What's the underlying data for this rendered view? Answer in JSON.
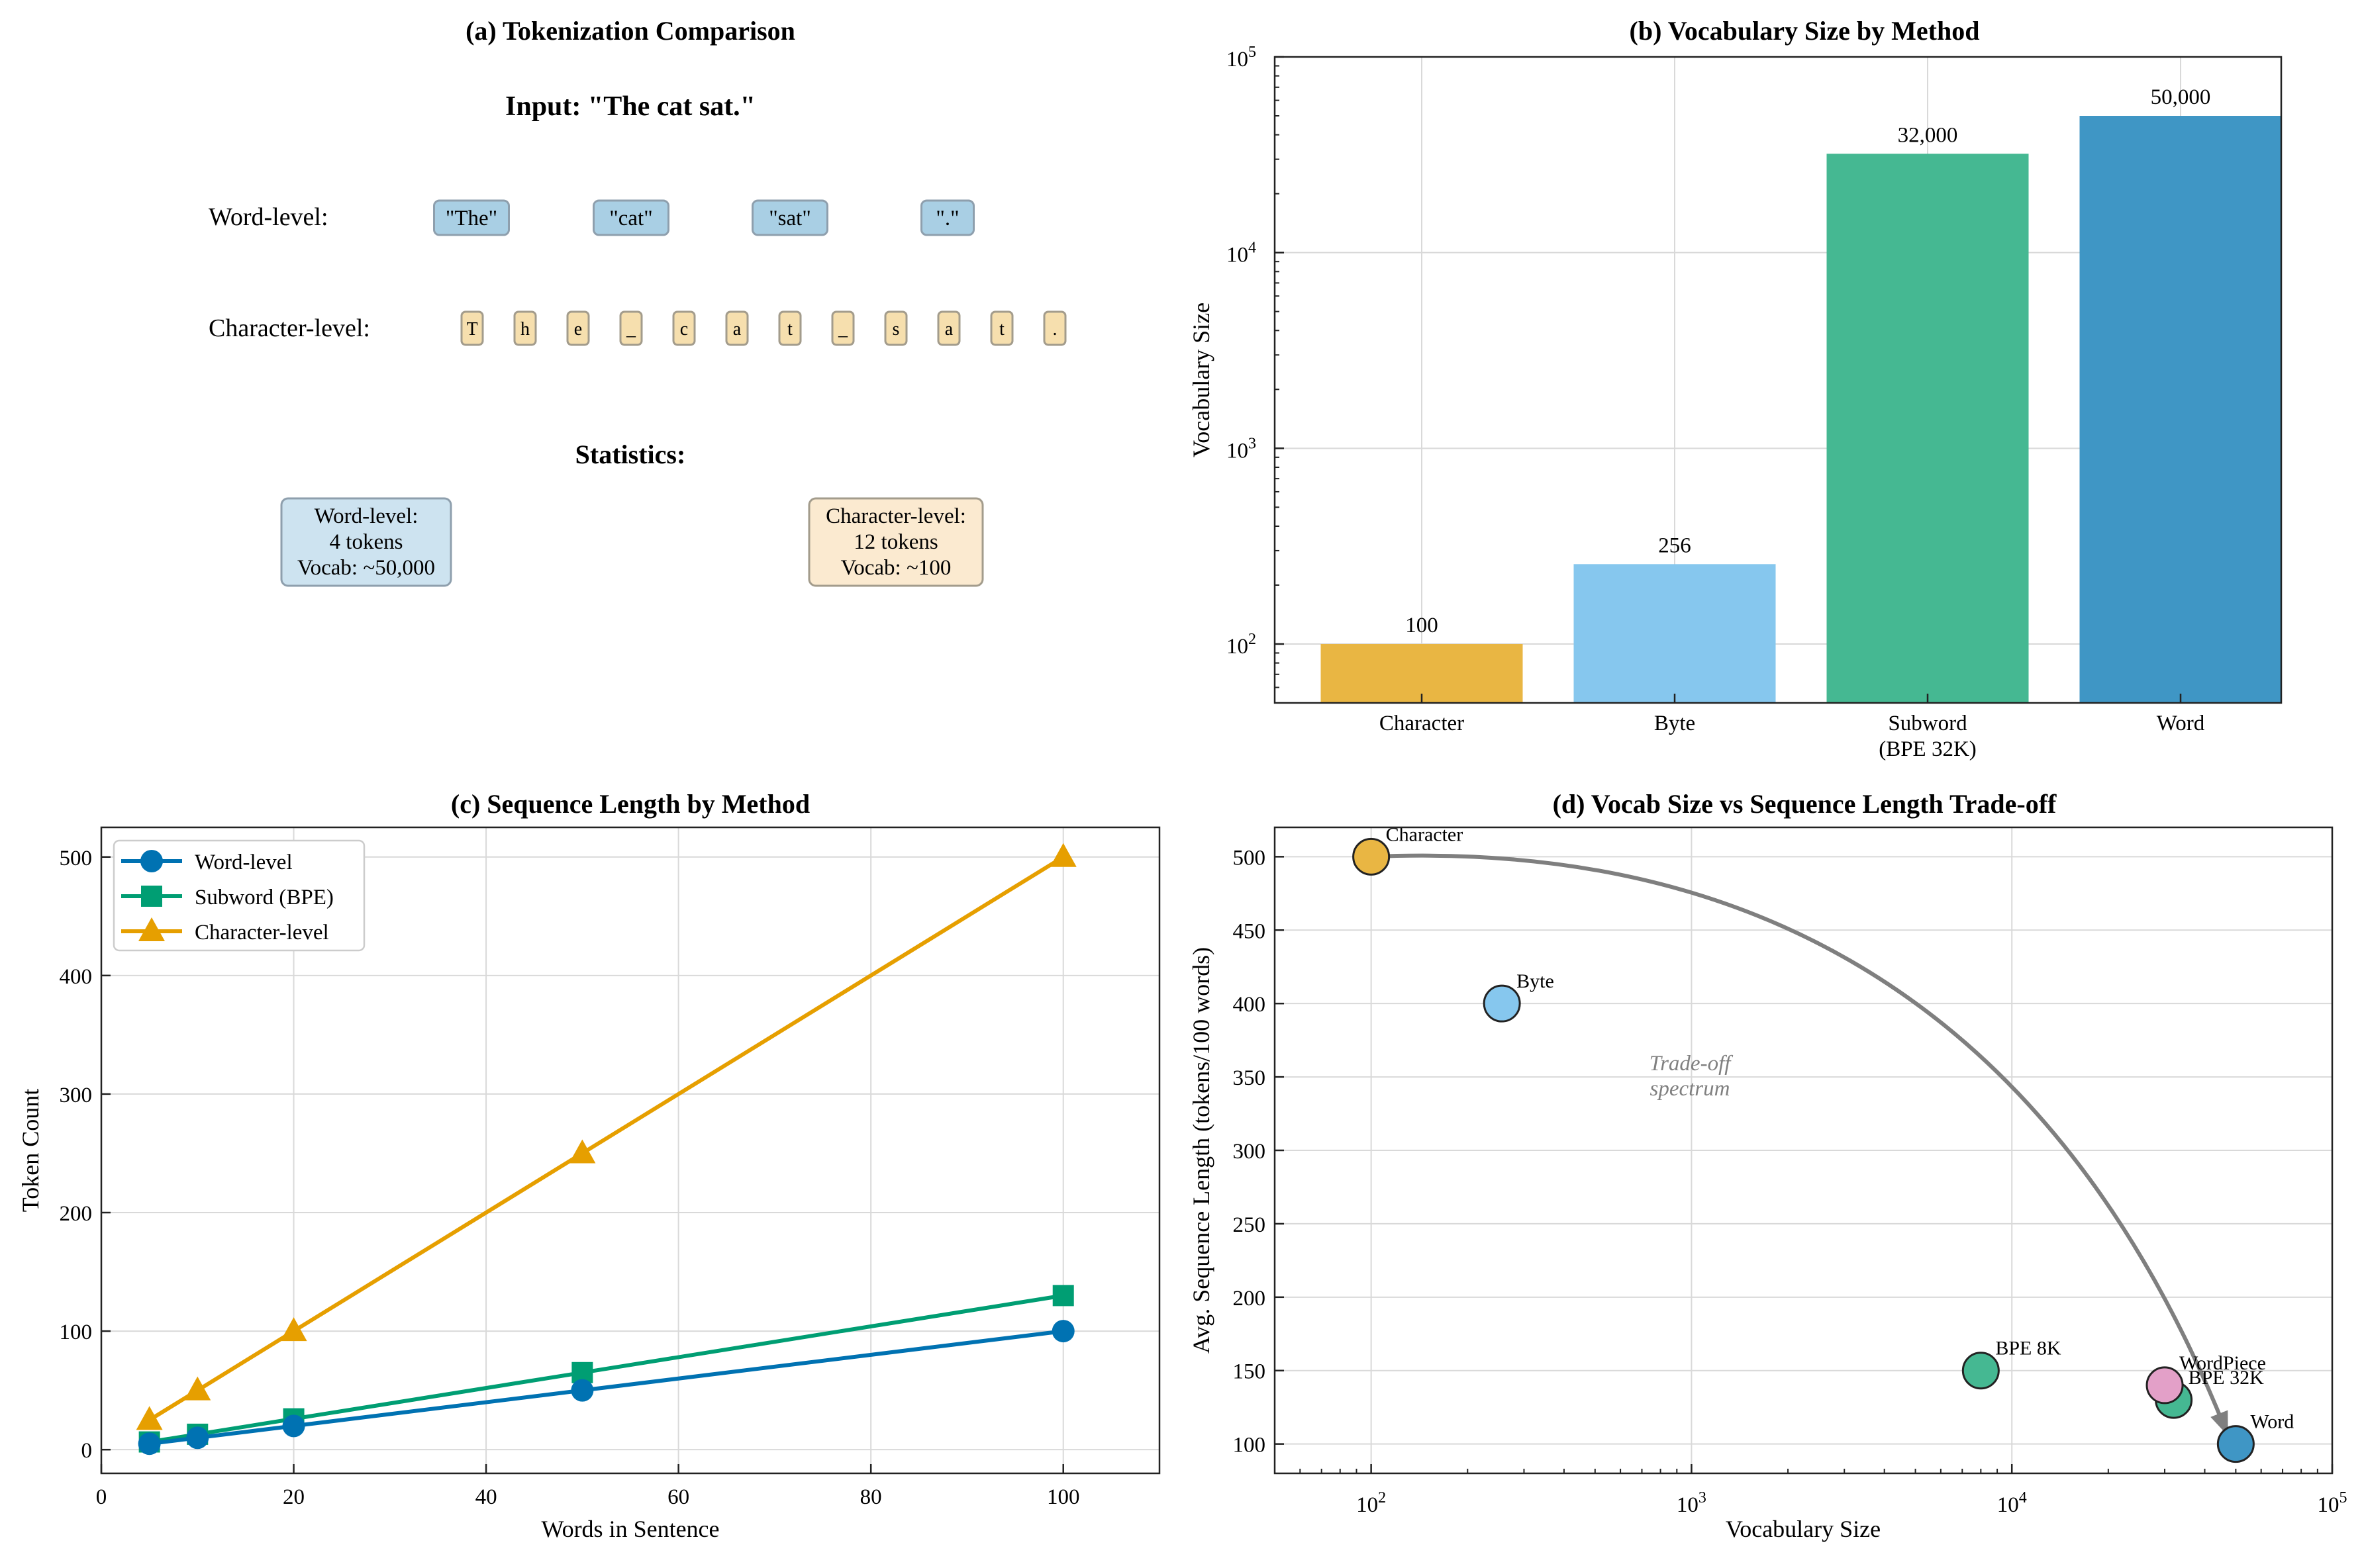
{
  "panels": {
    "a": {
      "title": "(a) Tokenization Comparison",
      "input_label": "Input: \"The cat sat.\"",
      "word_row_label": "Word-level:",
      "char_row_label": "Character-level:",
      "word_tokens": [
        "\"The\"",
        "\"cat\"",
        "\"sat\"",
        "\".\""
      ],
      "char_tokens": [
        "T",
        "h",
        "e",
        "_",
        "c",
        "a",
        "t",
        "_",
        "s",
        "a",
        "t",
        "."
      ],
      "stats_title": "Statistics:",
      "word_stats": [
        "Word-level:",
        "4 tokens",
        "Vocab: ~50,000"
      ],
      "char_stats": [
        "Character-level:",
        "12 tokens",
        "Vocab: ~100"
      ],
      "colors": {
        "word_fill": "#a9cfe4",
        "word_stroke": "#8e9fad",
        "char_fill": "#f6dfae",
        "char_stroke": "#a39c8c",
        "word_stat_fill": "#cde3f0",
        "char_stat_fill": "#fbead0"
      }
    }
  },
  "chart_data": [
    {
      "type": "bar",
      "title": "(b) Vocabulary Size by Method",
      "ylabel": "Vocabulary Size",
      "yscale": "log",
      "ylim": [
        50,
        100000
      ],
      "categories": [
        "Character",
        "Byte",
        "Subword",
        "Word"
      ],
      "category_sublabels": [
        "",
        "",
        "(BPE 32K)",
        ""
      ],
      "values": [
        100,
        256,
        32000,
        50000
      ],
      "value_labels": [
        "100",
        "256",
        "32,000",
        "50,000"
      ],
      "yticks": [
        100,
        1000,
        10000,
        100000
      ],
      "ytick_bases": [
        "10",
        "10",
        "10",
        "10"
      ],
      "ytick_exps": [
        "2",
        "3",
        "4",
        "5"
      ],
      "colors": [
        "#e9b643",
        "#86c7ee",
        "#45b892",
        "#3f96c5"
      ]
    },
    {
      "type": "line",
      "title": "(c) Sequence Length by Method",
      "xlabel": "Words in Sentence",
      "ylabel": "Token Count",
      "xlim": [
        0,
        110
      ],
      "ylim": [
        -20,
        525
      ],
      "xticks": [
        0,
        20,
        40,
        60,
        80,
        100
      ],
      "yticks": [
        0,
        100,
        200,
        300,
        400,
        500
      ],
      "x": [
        5,
        10,
        20,
        50,
        100
      ],
      "legend_position": "top-left",
      "series": [
        {
          "name": "Word-level",
          "values": [
            5,
            10,
            20,
            50,
            100
          ],
          "color": "#0072b2",
          "marker": "circle"
        },
        {
          "name": "Subword (BPE)",
          "values": [
            6.5,
            13,
            26,
            65,
            130
          ],
          "color": "#009e73",
          "marker": "square"
        },
        {
          "name": "Character-level",
          "values": [
            25,
            50,
            100,
            250,
            500
          ],
          "color": "#e69f00",
          "marker": "triangle"
        }
      ]
    },
    {
      "type": "scatter",
      "title": "(d) Vocab Size vs Sequence Length Trade-off",
      "xlabel": "Vocabulary Size",
      "ylabel": "Avg. Sequence Length (tokens/100 words)",
      "xscale": "log",
      "xlim": [
        50,
        100000
      ],
      "ylim": [
        80,
        520
      ],
      "xticks": [
        100,
        1000,
        10000,
        100000
      ],
      "xtick_bases": [
        "10",
        "10",
        "10",
        "10"
      ],
      "xtick_exps": [
        "2",
        "3",
        "4",
        "5"
      ],
      "yticks": [
        100,
        150,
        200,
        250,
        300,
        350,
        400,
        450,
        500
      ],
      "annotation": [
        "Trade-off",
        "spectrum"
      ],
      "arrow_from": [
        100,
        500
      ],
      "arrow_to": [
        50000,
        100
      ],
      "points": [
        {
          "label": "Character",
          "x": 100,
          "y": 500,
          "color": "#e9b643"
        },
        {
          "label": "Byte",
          "x": 256,
          "y": 400,
          "color": "#86c7ee"
        },
        {
          "label": "BPE 8K",
          "x": 8000,
          "y": 150,
          "color": "#45b892"
        },
        {
          "label": "BPE 32K",
          "x": 32000,
          "y": 130,
          "color": "#45b892"
        },
        {
          "label": "WordPiece",
          "x": 30000,
          "y": 140,
          "color": "#e3a0c8"
        },
        {
          "label": "Word",
          "x": 50000,
          "y": 100,
          "color": "#3f96c5"
        }
      ]
    }
  ]
}
